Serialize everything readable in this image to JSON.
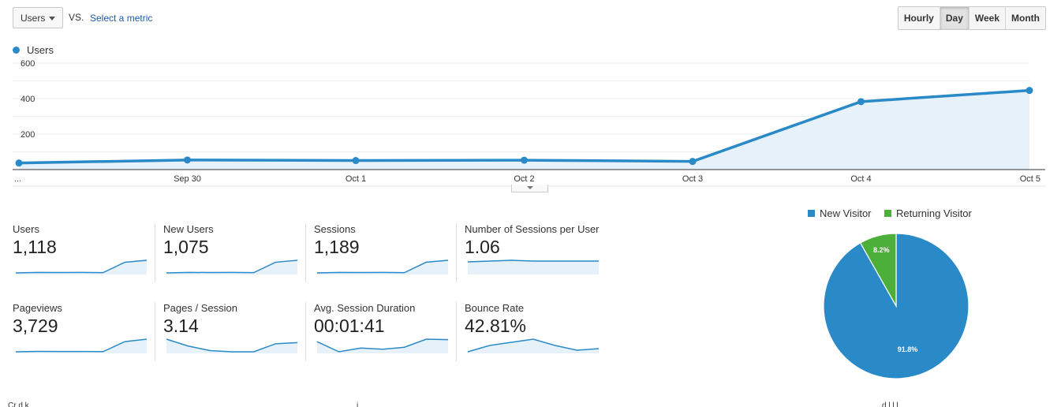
{
  "controls": {
    "metric_select": "Users",
    "vs": "VS.",
    "select_metric": "Select a metric",
    "granularity": [
      "Hourly",
      "Day",
      "Week",
      "Month"
    ],
    "active_granularity": "Day"
  },
  "chart_data": {
    "type": "area",
    "series": [
      {
        "name": "Users",
        "values": [
          37,
          54,
          51,
          53,
          46,
          383,
          446
        ]
      }
    ],
    "categories": [
      "...",
      "Sep 30",
      "Oct 1",
      "Oct 2",
      "Oct 3",
      "Oct 4",
      "Oct 5"
    ],
    "y_ticks": [
      "600",
      "400",
      "200"
    ],
    "ylim": [
      0,
      600
    ],
    "grid": true,
    "legend": "top-left",
    "color": "#2a8ac8",
    "fill": "#e6f1fa"
  },
  "scorecards": [
    {
      "label": "Users",
      "value": "1,118",
      "trend": [
        37,
        54,
        51,
        53,
        46,
        383,
        446
      ]
    },
    {
      "label": "New Users",
      "value": "1,075",
      "trend": [
        35,
        50,
        48,
        51,
        43,
        370,
        430
      ]
    },
    {
      "label": "Sessions",
      "value": "1,189",
      "trend": [
        40,
        58,
        55,
        56,
        49,
        405,
        470
      ]
    },
    {
      "label": "Number of Sessions per User",
      "value": "1.06",
      "trend": [
        1.05,
        1.06,
        1.07,
        1.06,
        1.06,
        1.06,
        1.06
      ]
    },
    {
      "label": "Pageviews",
      "value": "3,729",
      "trend": [
        120,
        160,
        150,
        155,
        140,
        1300,
        1580
      ]
    },
    {
      "label": "Pages / Session",
      "value": "3.14",
      "trend": [
        3.6,
        3.3,
        3.1,
        3.05,
        3.05,
        3.4,
        3.45
      ]
    },
    {
      "label": "Avg. Session Duration",
      "value": "00:01:41",
      "trend": [
        110,
        70,
        85,
        80,
        88,
        120,
        118
      ]
    },
    {
      "label": "Bounce Rate",
      "value": "42.81%",
      "trend": [
        44,
        48,
        50,
        52,
        48,
        45,
        46
      ]
    }
  ],
  "pie": {
    "legend": [
      {
        "label": "New Visitor",
        "color": "#2a8ac8"
      },
      {
        "label": "Returning Visitor",
        "color": "#4caf3a"
      }
    ],
    "chart_data": {
      "type": "pie",
      "categories": [
        "New Visitor",
        "Returning Visitor"
      ],
      "values": [
        91.8,
        8.2
      ],
      "labels": [
        "91.8%",
        "8.2%"
      ]
    }
  }
}
